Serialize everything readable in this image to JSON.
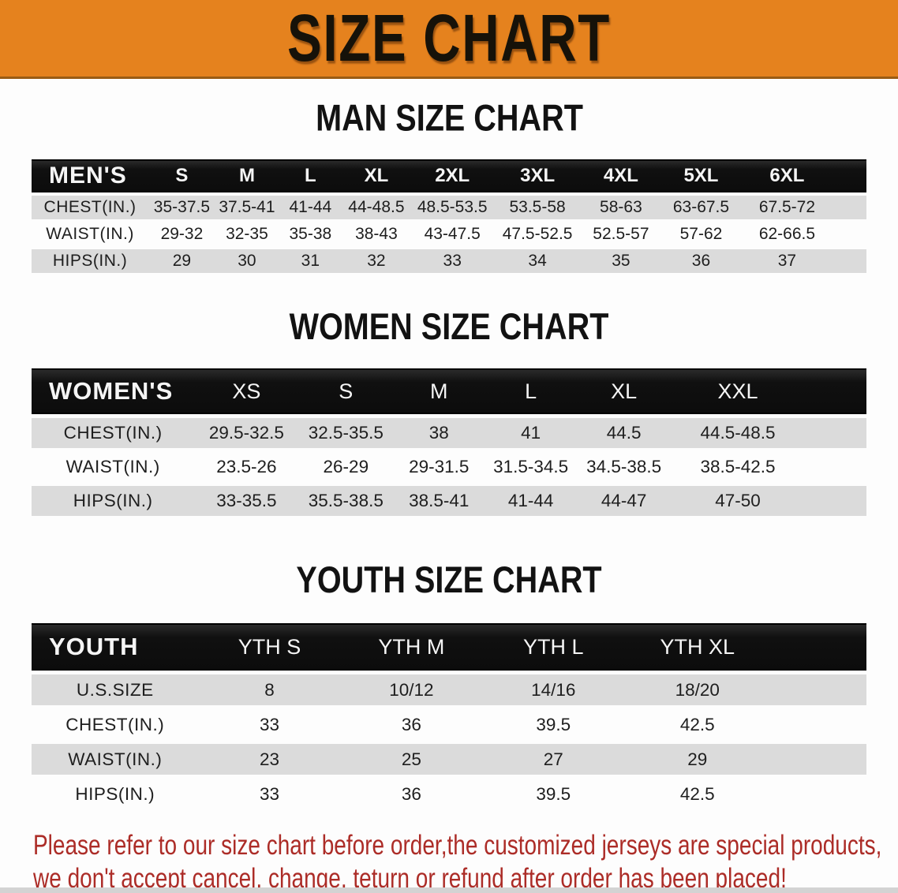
{
  "banner": {
    "title": "SIZE CHART",
    "bg_color": "#e5821e"
  },
  "sections": [
    {
      "heading": "MAN SIZE CHART",
      "table": {
        "header": [
          "MEN'S",
          "S",
          "M",
          "L",
          "XL",
          "2XL",
          "3XL",
          "4XL",
          "5XL",
          "6XL"
        ],
        "rows": [
          [
            "CHEST(IN.)",
            "35-37.5",
            "37.5-41",
            "41-44",
            "44-48.5",
            "48.5-53.5",
            "53.5-58",
            "58-63",
            "63-67.5",
            "67.5-72"
          ],
          [
            "WAIST(IN.)",
            "29-32",
            "32-35",
            "35-38",
            "38-43",
            "43-47.5",
            "47.5-52.5",
            "52.5-57",
            "57-62",
            "62-66.5"
          ],
          [
            "HIPS(IN.)",
            "29",
            "30",
            "31",
            "32",
            "33",
            "34",
            "35",
            "36",
            "37"
          ]
        ]
      }
    },
    {
      "heading": "WOMEN SIZE CHART",
      "table": {
        "header": [
          "WOMEN'S",
          "XS",
          "S",
          "M",
          "L",
          "XL",
          "XXL"
        ],
        "rows": [
          [
            "CHEST(IN.)",
            "29.5-32.5",
            "32.5-35.5",
            "38",
            "41",
            "44.5",
            "44.5-48.5"
          ],
          [
            "WAIST(IN.)",
            "23.5-26",
            "26-29",
            "29-31.5",
            "31.5-34.5",
            "34.5-38.5",
            "38.5-42.5"
          ],
          [
            "HIPS(IN.)",
            "33-35.5",
            "35.5-38.5",
            "38.5-41",
            "41-44",
            "44-47",
            "47-50"
          ]
        ]
      }
    },
    {
      "heading": "YOUTH SIZE CHART",
      "table": {
        "header": [
          "YOUTH",
          "YTH S",
          "YTH M",
          "YTH L",
          "YTH XL"
        ],
        "rows": [
          [
            "U.S.SIZE",
            "8",
            "10/12",
            "14/16",
            "18/20"
          ],
          [
            "CHEST(IN.)",
            "33",
            "36",
            "39.5",
            "42.5"
          ],
          [
            "WAIST(IN.)",
            "23",
            "25",
            "27",
            "29"
          ],
          [
            "HIPS(IN.)",
            "33",
            "36",
            "39.5",
            "42.5"
          ]
        ]
      }
    }
  ],
  "footer": {
    "line1": "Please refer to our size chart before order,the customized jerseys are special products,",
    "line2": "we don't accept cancel, change, teturn or refund after order has been placed!",
    "text_color": "#ac2c27"
  }
}
